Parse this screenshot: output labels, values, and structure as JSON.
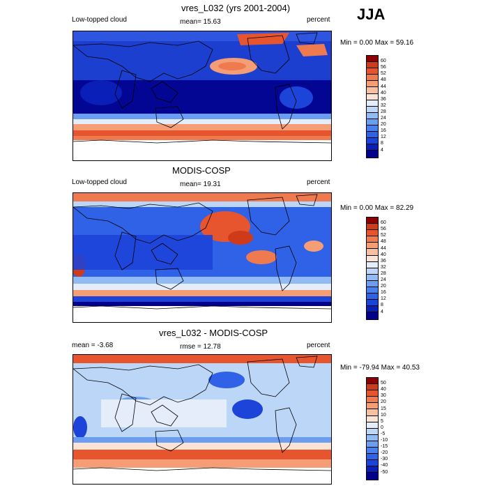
{
  "season": "JJA",
  "panels": [
    {
      "id": "model",
      "title": "vres_L032 (yrs 2001-2004)",
      "left_label": "Low-topped cloud",
      "center_label": "mean=  15.63",
      "right_label": "percent",
      "stats": "Min =   0.00 Max =  59.16",
      "colorbar_ticks": [
        "60",
        "56",
        "52",
        "48",
        "44",
        "40",
        "36",
        "32",
        "28",
        "24",
        "20",
        "16",
        "12",
        "8",
        "4"
      ]
    },
    {
      "id": "obs",
      "title": "MODIS-COSP",
      "left_label": "Low-topped cloud",
      "center_label": "mean=  19.31",
      "right_label": "percent",
      "stats": "Min =   0.00 Max =  82.29",
      "colorbar_ticks": [
        "60",
        "56",
        "52",
        "48",
        "44",
        "40",
        "36",
        "32",
        "28",
        "24",
        "20",
        "16",
        "12",
        "8",
        "4"
      ]
    },
    {
      "id": "diff",
      "title": "vres_L032 - MODIS-COSP",
      "left_label": "mean =  -3.68",
      "center_label": "rmse =  12.78",
      "right_label": "percent",
      "stats": "Min = -79.94 Max =  40.53",
      "colorbar_ticks": [
        "50",
        "40",
        "30",
        "20",
        "15",
        "10",
        "5",
        "0",
        "-5",
        "-10",
        "-15",
        "-20",
        "-30",
        "-40",
        "-50"
      ]
    }
  ],
  "chart_data": [
    {
      "type": "heatmap",
      "title": "vres_L032 (yrs 2001-2004)",
      "variable": "Low-topped cloud",
      "units": "percent",
      "mean": 15.63,
      "min": 0.0,
      "max": 59.16,
      "contour_levels": [
        4,
        8,
        12,
        16,
        20,
        24,
        28,
        32,
        36,
        40,
        44,
        48,
        52,
        56,
        60
      ],
      "colors": [
        "#00008b",
        "#0a1fb8",
        "#1d44d8",
        "#2f62e6",
        "#4a80ec",
        "#6b9df0",
        "#92baf3",
        "#bcd6f7",
        "#e4edf9",
        "#fbe3d6",
        "#f8c0a3",
        "#f59e76",
        "#f07a4f",
        "#e6552e",
        "#cf3a1b",
        "#8b0000"
      ]
    },
    {
      "type": "heatmap",
      "title": "MODIS-COSP",
      "variable": "Low-topped cloud",
      "units": "percent",
      "mean": 19.31,
      "min": 0.0,
      "max": 82.29,
      "contour_levels": [
        4,
        8,
        12,
        16,
        20,
        24,
        28,
        32,
        36,
        40,
        44,
        48,
        52,
        56,
        60
      ],
      "colors": [
        "#00008b",
        "#0a1fb8",
        "#1d44d8",
        "#2f62e6",
        "#4a80ec",
        "#6b9df0",
        "#92baf3",
        "#bcd6f7",
        "#e4edf9",
        "#fbe3d6",
        "#f8c0a3",
        "#f59e76",
        "#f07a4f",
        "#e6552e",
        "#cf3a1b",
        "#8b0000"
      ]
    },
    {
      "type": "heatmap",
      "title": "vres_L032 - MODIS-COSP",
      "units": "percent",
      "mean": -3.68,
      "rmse": 12.78,
      "min": -79.94,
      "max": 40.53,
      "contour_levels": [
        -50,
        -40,
        -30,
        -20,
        -15,
        -10,
        -5,
        0,
        5,
        10,
        15,
        20,
        30,
        40,
        50
      ],
      "colors": [
        "#00008b",
        "#0a1fb8",
        "#1d44d8",
        "#2f62e6",
        "#4a80ec",
        "#6b9df0",
        "#92baf3",
        "#bcd6f7",
        "#e4edf9",
        "#fbe3d6",
        "#f8c0a3",
        "#f59e76",
        "#f07a4f",
        "#e6552e",
        "#cf3a1b",
        "#8b0000"
      ]
    }
  ]
}
